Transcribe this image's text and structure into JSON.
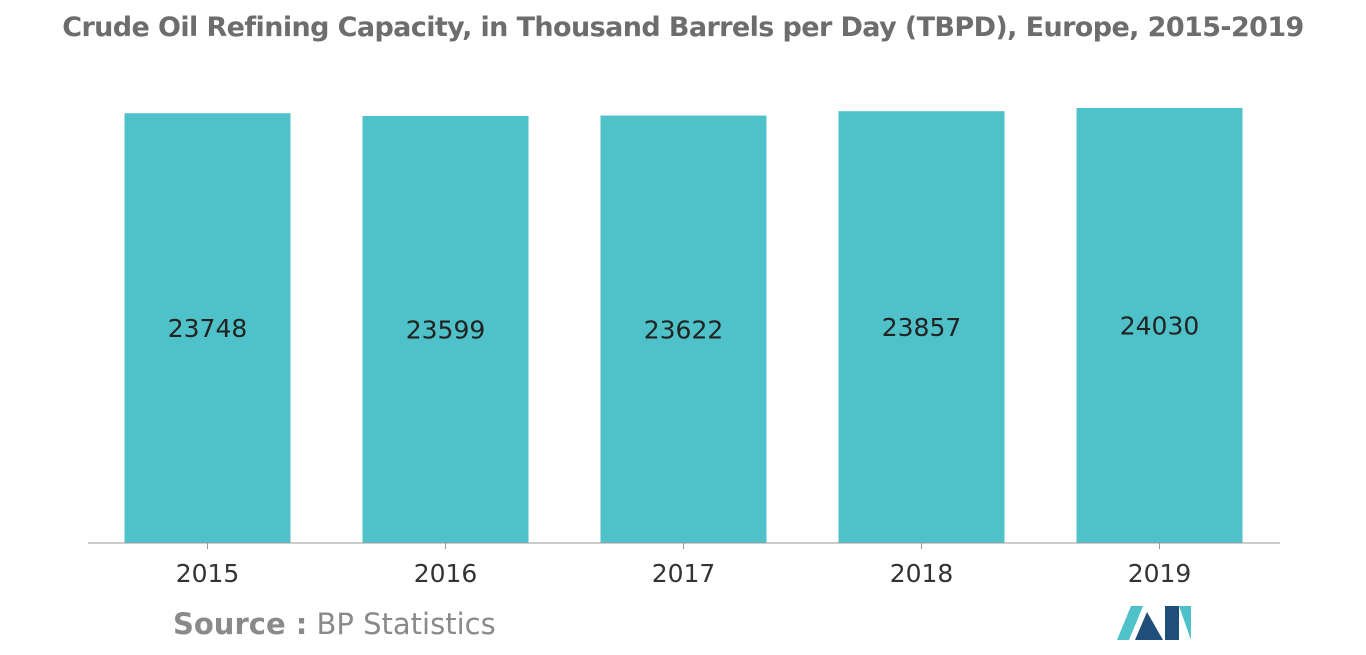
{
  "title": "Crude Oil Refining Capacity, in Thousand Barrels per Day (TBPD), Europe, 2015-2019",
  "source": {
    "label": "Source :",
    "text": "BP Statistics"
  },
  "colors": {
    "bar": "#4fc1c8",
    "title": "#6d6d6d",
    "label": "#222222",
    "tick": "#333333",
    "axis": "#9a9a9a",
    "source": "#8a8a8a",
    "logo_dark": "#1f4e79",
    "logo_light": "#4fc1c8"
  },
  "chart_data": {
    "type": "bar",
    "title": "Crude Oil Refining Capacity, in Thousand Barrels per Day (TBPD), Europe, 2015-2019",
    "categories": [
      "2015",
      "2016",
      "2017",
      "2018",
      "2019"
    ],
    "values": [
      23748,
      23599,
      23622,
      23857,
      24030
    ],
    "xlabel": "",
    "ylabel": "",
    "grid": false,
    "legend": "none",
    "data_labels": "center"
  }
}
